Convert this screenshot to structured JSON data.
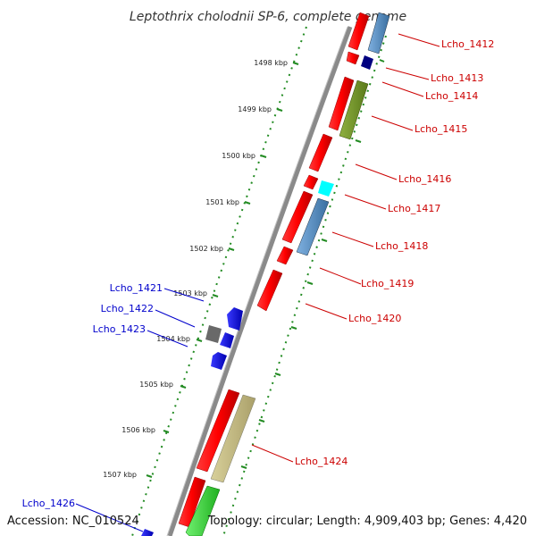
{
  "title": "Leptothrix cholodnii SP-6, complete genome",
  "accession": "Accession: NC_010524",
  "summary": "Topology: circular; Length: 4,909,403 bp; Genes: 4,420",
  "colors": {
    "backbone": "#808080",
    "tick": "#228b22",
    "red_gene": "#ff0000",
    "blue_gene": "#0000ff",
    "steel": "#4682b4",
    "olive": "#6b8e23",
    "navy": "#000080",
    "cyan": "#00ffff",
    "khaki": "#bdb76b",
    "gray": "#696969",
    "green": "#32cd32",
    "red_label": "#cc0000",
    "blue_label": "#0000cc"
  },
  "ticks": [
    "1498 kbp",
    "1499 kbp",
    "1500 kbp",
    "1501 kbp",
    "1502 kbp",
    "1503 kbp",
    "1504 kbp",
    "1505 kbp",
    "1506 kbp",
    "1507 kbp"
  ],
  "genes_right": [
    "Lcho_1412",
    "Lcho_1413",
    "Lcho_1414",
    "Lcho_1415",
    "Lcho_1416",
    "Lcho_1417",
    "Lcho_1418",
    "Lcho_1419",
    "Lcho_1420",
    "Lcho_1424"
  ],
  "genes_left": [
    "Lcho_1421",
    "Lcho_1422",
    "Lcho_1423",
    "Lcho_1426"
  ]
}
